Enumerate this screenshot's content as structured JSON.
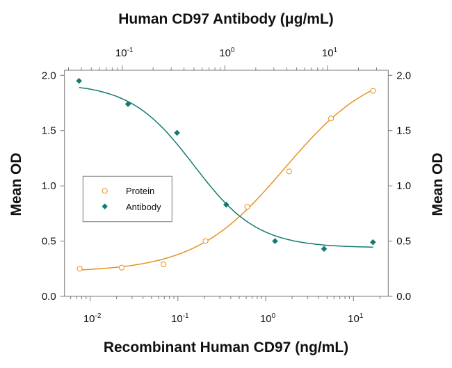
{
  "chart_data": {
    "type": "scatter",
    "title_top": "Human CD97 Antibody (μg/mL)",
    "xlabel": "Recombinant Human CD97 (ng/mL)",
    "ylabel_left": "Mean OD",
    "ylabel_right": "Mean OD",
    "x_scale": "log",
    "x_top_scale": "log",
    "xlim_bottom": [
      0.0051,
      24.9
    ],
    "xlim_top": [
      0.0274,
      39.0
    ],
    "ylim": [
      0,
      2.05
    ],
    "y_ticks": [
      "0.0",
      "0.5",
      "1.0",
      "1.5",
      "2.0"
    ],
    "y_tick_values": [
      0,
      0.5,
      1.0,
      1.5,
      2.0
    ],
    "x_bottom_ticks": [
      {
        "exp": "-2",
        "value": 0.01
      },
      {
        "exp": "-1",
        "value": 0.1
      },
      {
        "exp": "0",
        "value": 1
      },
      {
        "exp": "1",
        "value": 10
      }
    ],
    "x_top_ticks": [
      {
        "exp": "-1",
        "value": 0.1
      },
      {
        "exp": "0",
        "value": 1
      },
      {
        "exp": "1",
        "value": 10
      }
    ],
    "tick_base": "10",
    "grid": false,
    "legend_placement": "center-left",
    "series": [
      {
        "name": "Protein",
        "axis": "bottom",
        "marker": "open-circle",
        "color": "#e8921e",
        "x": [
          0.0076,
          0.0229,
          0.0686,
          0.206,
          0.617,
          1.85,
          5.56,
          16.7
        ],
        "y": [
          0.25,
          0.26,
          0.29,
          0.5,
          0.81,
          1.13,
          1.61,
          1.86
        ],
        "fit": {
          "model": "4PL",
          "bottom": 0.22,
          "top": 2.1,
          "ec50": 1.65,
          "hill": 0.85
        }
      },
      {
        "name": "Antibody",
        "axis": "top",
        "marker": "filled-diamond",
        "color": "#137a70",
        "x": [
          0.038,
          0.114,
          0.342,
          1.03,
          3.08,
          9.25,
          27.7
        ],
        "y": [
          1.95,
          1.74,
          1.48,
          0.83,
          0.5,
          0.43,
          0.49
        ],
        "fit": {
          "model": "4PL",
          "bottom": 0.44,
          "top": 1.93,
          "ec50": 0.5,
          "hill": -1.4
        }
      }
    ]
  }
}
